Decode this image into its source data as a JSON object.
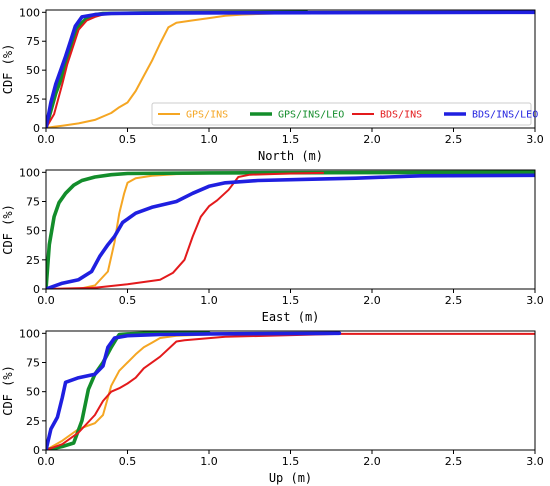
{
  "chart_data": [
    {
      "type": "line",
      "xlabel": "North (m)",
      "ylabel": "CDF (%)",
      "xlim": [
        0,
        3.0
      ],
      "ylim": [
        0,
        102
      ],
      "xticks": [
        "0.0",
        "0.5",
        "1.0",
        "1.5",
        "2.0",
        "2.5",
        "3.0"
      ],
      "yticks": [
        "0",
        "25",
        "50",
        "75",
        "100"
      ],
      "legend": {
        "placement": "lower-right",
        "entries": [
          "GPS/INS",
          "GPS/INS/LEO",
          "BDS/INS",
          "BDS/INS/LEO"
        ]
      },
      "series": [
        {
          "name": "GPS/INS",
          "color": "#F5A623",
          "x": [
            0,
            0.05,
            0.1,
            0.2,
            0.3,
            0.4,
            0.45,
            0.5,
            0.55,
            0.6,
            0.65,
            0.7,
            0.75,
            0.8,
            0.9,
            1.0,
            1.1,
            1.2,
            1.4,
            1.6,
            2.6
          ],
          "y": [
            0,
            1,
            2,
            4,
            7,
            13,
            18,
            22,
            32,
            45,
            58,
            73,
            87,
            91,
            93,
            95,
            97,
            98,
            99,
            99.5,
            99.5
          ]
        },
        {
          "name": "GPS/INS/LEO",
          "color": "#138D2B",
          "x": [
            0,
            0.03,
            0.06,
            0.1,
            0.13,
            0.16,
            0.2,
            0.25,
            0.3,
            0.35,
            0.6,
            1.6
          ],
          "y": [
            0,
            15,
            30,
            45,
            60,
            75,
            88,
            95,
            98,
            99,
            99.5,
            100
          ]
        },
        {
          "name": "BDS/INS",
          "color": "#E31A1C",
          "x": [
            0,
            0.05,
            0.1,
            0.13,
            0.17,
            0.2,
            0.25,
            0.3,
            0.35,
            0.4,
            0.6,
            2.0
          ],
          "y": [
            0,
            12,
            38,
            55,
            72,
            85,
            93,
            96,
            98,
            99,
            99.5,
            100
          ]
        },
        {
          "name": "BDS/INS/LEO",
          "color": "#1F1FE0",
          "x": [
            0,
            0.03,
            0.06,
            0.09,
            0.12,
            0.15,
            0.18,
            0.22,
            0.3,
            0.4,
            0.8,
            3.0
          ],
          "y": [
            0,
            22,
            38,
            50,
            62,
            75,
            88,
            96,
            98,
            99,
            99.5,
            100
          ]
        }
      ]
    },
    {
      "type": "line",
      "xlabel": "East (m)",
      "ylabel": "CDF (%)",
      "xlim": [
        0,
        3.0
      ],
      "ylim": [
        0,
        102
      ],
      "xticks": [
        "0.0",
        "0.5",
        "1.0",
        "1.5",
        "2.0",
        "2.5",
        "3.0"
      ],
      "yticks": [
        "0",
        "25",
        "50",
        "75",
        "100"
      ],
      "series": [
        {
          "name": "GPS/INS",
          "color": "#F5A623",
          "x": [
            0,
            0.2,
            0.3,
            0.38,
            0.42,
            0.45,
            0.48,
            0.5,
            0.55,
            0.65,
            0.8,
            1.0,
            1.5,
            2.2
          ],
          "y": [
            0,
            0,
            3,
            15,
            40,
            65,
            82,
            91,
            95,
            97,
            98.5,
            99,
            99.5,
            99.5
          ]
        },
        {
          "name": "GPS/INS/LEO",
          "color": "#138D2B",
          "x": [
            0,
            0.02,
            0.05,
            0.08,
            0.12,
            0.17,
            0.22,
            0.3,
            0.4,
            0.5,
            1.0,
            3.0
          ],
          "y": [
            0,
            38,
            62,
            74,
            82,
            89,
            93,
            96,
            98,
            99,
            99.5,
            100
          ]
        },
        {
          "name": "BDS/INS",
          "color": "#E31A1C",
          "x": [
            0,
            0.3,
            0.5,
            0.7,
            0.78,
            0.85,
            0.9,
            0.95,
            1.0,
            1.05,
            1.12,
            1.18,
            1.25,
            1.5,
            1.7
          ],
          "y": [
            0,
            1,
            4,
            8,
            14,
            25,
            45,
            62,
            71,
            76,
            85,
            96,
            98,
            99,
            99.5
          ]
        },
        {
          "name": "BDS/INS/LEO",
          "color": "#1F1FE0",
          "x": [
            0,
            0.1,
            0.2,
            0.28,
            0.33,
            0.38,
            0.42,
            0.47,
            0.55,
            0.65,
            0.8,
            0.9,
            1.0,
            1.1,
            1.3,
            1.6,
            1.9,
            2.1,
            2.3,
            3.0
          ],
          "y": [
            0,
            5,
            8,
            15,
            28,
            38,
            45,
            57,
            65,
            70,
            75,
            82,
            88,
            91,
            93,
            94,
            95,
            96,
            97,
            97.5
          ]
        }
      ]
    },
    {
      "type": "line",
      "xlabel": "Up (m)",
      "ylabel": "CDF (%)",
      "xlim": [
        0,
        3.0
      ],
      "ylim": [
        0,
        102
      ],
      "xticks": [
        "0.0",
        "0.5",
        "1.0",
        "1.5",
        "2.0",
        "2.5",
        "3.0"
      ],
      "yticks": [
        "0",
        "25",
        "50",
        "75",
        "100"
      ],
      "series": [
        {
          "name": "GPS/INS",
          "color": "#F5A623",
          "x": [
            0,
            0.1,
            0.2,
            0.3,
            0.35,
            0.4,
            0.45,
            0.5,
            0.55,
            0.6,
            0.65,
            0.7,
            0.8,
            1.0
          ],
          "y": [
            0,
            8,
            18,
            23,
            30,
            55,
            68,
            75,
            82,
            88,
            92,
            96,
            98,
            99
          ]
        },
        {
          "name": "GPS/INS/LEO",
          "color": "#138D2B",
          "x": [
            0,
            0.1,
            0.17,
            0.22,
            0.26,
            0.3,
            0.35,
            0.4,
            0.43,
            0.45,
            0.5,
            0.6,
            1.0
          ],
          "y": [
            0,
            3,
            6,
            25,
            52,
            65,
            75,
            88,
            95,
            99,
            99.5,
            100,
            100
          ]
        },
        {
          "name": "BDS/INS",
          "color": "#E31A1C",
          "x": [
            0,
            0.1,
            0.2,
            0.3,
            0.35,
            0.4,
            0.45,
            0.5,
            0.55,
            0.6,
            0.7,
            0.8,
            0.85,
            1.1,
            1.8,
            3.0
          ],
          "y": [
            0,
            5,
            15,
            30,
            42,
            50,
            53,
            57,
            62,
            70,
            80,
            93,
            94,
            97,
            99.5,
            99.5
          ]
        },
        {
          "name": "BDS/INS/LEO",
          "color": "#1F1FE0",
          "x": [
            0,
            0.03,
            0.07,
            0.1,
            0.12,
            0.2,
            0.3,
            0.35,
            0.38,
            0.42,
            0.5,
            0.7,
            1.0,
            1.8
          ],
          "y": [
            0,
            18,
            28,
            45,
            58,
            62,
            65,
            72,
            88,
            96,
            98,
            99,
            99.5,
            100
          ]
        }
      ]
    }
  ]
}
